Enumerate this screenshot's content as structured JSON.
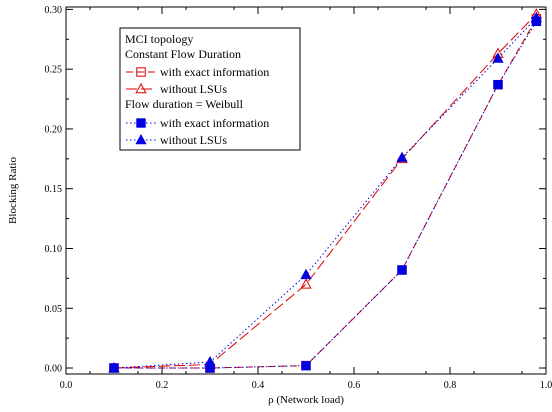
{
  "chart_data": {
    "type": "line",
    "title": "",
    "xlabel": "ρ (Network load)",
    "ylabel": "Blocking Ratio",
    "xlim": [
      0.0,
      1.0
    ],
    "ylim": [
      -0.005,
      0.302
    ],
    "x_ticks": [
      "0.0",
      "0.2",
      "0.4",
      "0.6",
      "0.8",
      "1.0"
    ],
    "y_ticks": [
      "0.00",
      "0.05",
      "0.10",
      "0.15",
      "0.20",
      "0.25",
      "0.30"
    ],
    "grid": false,
    "legend": {
      "placement": "top-left",
      "lines": [
        "MCI topology",
        "Constant Flow Duration",
        "with exact information",
        "without LSUs",
        "Flow duration = Weibull",
        "with exact information",
        "without LSUs"
      ]
    },
    "series": [
      {
        "name": "Constant Flow Duration – with exact information",
        "color": "#e00000",
        "marker": "open-square",
        "dash": "dashed",
        "x": [
          0.1,
          0.3,
          0.5,
          0.7,
          0.9,
          0.98
        ],
        "y": [
          0.0,
          0.0,
          0.002,
          0.082,
          0.237,
          0.292
        ]
      },
      {
        "name": "Constant Flow Duration – without LSUs",
        "color": "#e00000",
        "marker": "open-triangle",
        "dash": "longdash",
        "x": [
          0.1,
          0.3,
          0.5,
          0.7,
          0.9,
          0.98
        ],
        "y": [
          0.0,
          0.003,
          0.07,
          0.175,
          0.263,
          0.296
        ]
      },
      {
        "name": "Flow duration = Weibull – with exact information",
        "color": "#0000e0",
        "marker": "filled-square",
        "dash": "dotted",
        "x": [
          0.1,
          0.3,
          0.5,
          0.7,
          0.9,
          0.98
        ],
        "y": [
          0.0,
          0.0,
          0.002,
          0.082,
          0.237,
          0.29
        ]
      },
      {
        "name": "Flow duration = Weibull – without LSUs",
        "color": "#0000e0",
        "marker": "filled-triangle",
        "dash": "dotted",
        "x": [
          0.1,
          0.3,
          0.5,
          0.7,
          0.9,
          0.98
        ],
        "y": [
          0.0,
          0.005,
          0.078,
          0.176,
          0.259,
          0.293
        ]
      }
    ]
  }
}
